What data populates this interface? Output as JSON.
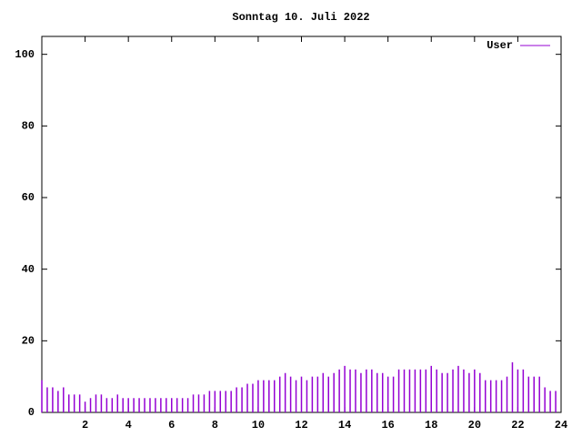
{
  "chart_data": {
    "type": "impulse",
    "title": "Sonntag 10. Juli 2022",
    "x": [
      0,
      0.25,
      0.5,
      0.75,
      1,
      1.25,
      1.5,
      1.75,
      2,
      2.25,
      2.5,
      2.75,
      3,
      3.25,
      3.5,
      3.75,
      4,
      4.25,
      4.5,
      4.75,
      5,
      5.25,
      5.5,
      5.75,
      6,
      6.25,
      6.5,
      6.75,
      7,
      7.25,
      7.5,
      7.75,
      8,
      8.25,
      8.5,
      8.75,
      9,
      9.25,
      9.5,
      9.75,
      10,
      10.25,
      10.5,
      10.75,
      11,
      11.25,
      11.5,
      11.75,
      12,
      12.25,
      12.5,
      12.75,
      13,
      13.25,
      13.5,
      13.75,
      14,
      14.25,
      14.5,
      14.75,
      15,
      15.25,
      15.5,
      15.75,
      16,
      16.25,
      16.5,
      16.75,
      17,
      17.25,
      17.5,
      17.75,
      18,
      18.25,
      18.5,
      18.75,
      19,
      19.25,
      19.5,
      19.75,
      20,
      20.25,
      20.5,
      20.75,
      21,
      21.25,
      21.5,
      21.75,
      22,
      22.25,
      22.5,
      22.75,
      23,
      23.25,
      23.5,
      23.75
    ],
    "series": [
      {
        "name": "User",
        "color": "#9400d3",
        "values": [
          9,
          7,
          7,
          6,
          7,
          5,
          5,
          5,
          3,
          4,
          5,
          5,
          4,
          4,
          5,
          4,
          4,
          4,
          4,
          4,
          4,
          4,
          4,
          4,
          4,
          4,
          4,
          4,
          5,
          5,
          5,
          6,
          6,
          6,
          6,
          6,
          7,
          7,
          8,
          8,
          9,
          9,
          9,
          9,
          10,
          11,
          10,
          9,
          10,
          9,
          10,
          10,
          11,
          10,
          11,
          12,
          13,
          12,
          12,
          11,
          12,
          12,
          11,
          11,
          10,
          10,
          12,
          12,
          12,
          12,
          12,
          12,
          13,
          12,
          11,
          11,
          12,
          13,
          12,
          11,
          12,
          11,
          9,
          9,
          9,
          9,
          10,
          14,
          12,
          12,
          10,
          10,
          10,
          7,
          6,
          6
        ]
      }
    ],
    "xlim": [
      0,
      24
    ],
    "xticks": [
      2,
      4,
      6,
      8,
      10,
      12,
      14,
      16,
      18,
      20,
      22,
      24
    ],
    "ylim": [
      0,
      105
    ],
    "yticks": [
      0,
      20,
      40,
      60,
      80,
      100
    ],
    "legend": "top-right"
  }
}
